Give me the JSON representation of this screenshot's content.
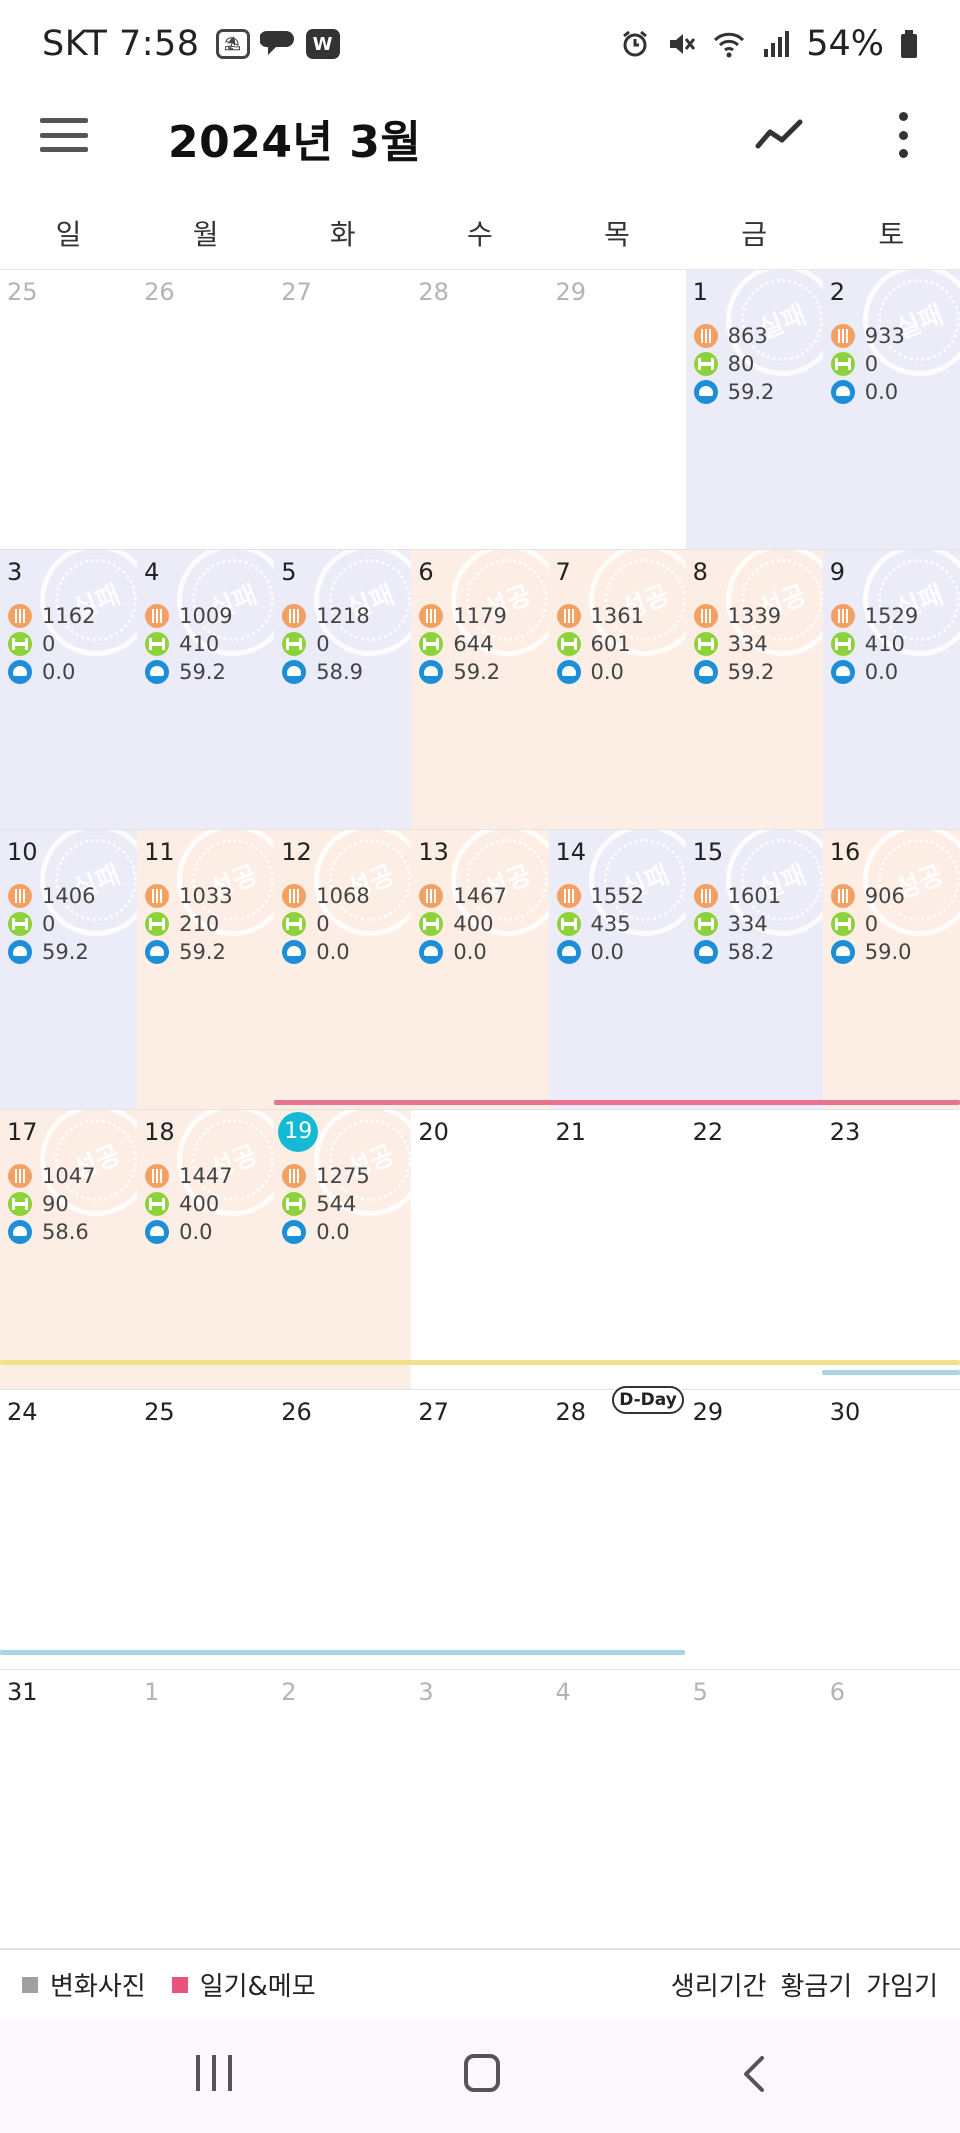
{
  "status_bar": {
    "carrier_time": "SKT 7:58",
    "icons": [
      "beach-icon",
      "chat-icon",
      "w-app-icon"
    ],
    "right_icons": [
      "alarm-icon",
      "mute-icon",
      "wifi-icon",
      "signal-icon",
      "battery-icon"
    ],
    "battery": "54%"
  },
  "header": {
    "title": "2024년 3월"
  },
  "weekdays": [
    "일",
    "월",
    "화",
    "수",
    "목",
    "금",
    "토"
  ],
  "calendar": {
    "today": "19",
    "stamp_labels": {
      "fail": "실패",
      "success": "성공"
    },
    "colors": {
      "fail_bg": "#ecebf8",
      "success_bg": "#fdeee5",
      "today": "#16b9d4"
    },
    "weeks": [
      [
        {
          "day": "25",
          "other": true
        },
        {
          "day": "26",
          "other": true
        },
        {
          "day": "27",
          "other": true
        },
        {
          "day": "28",
          "other": true
        },
        {
          "day": "29",
          "other": true
        },
        {
          "day": "1",
          "status": "fail",
          "food": "863",
          "exercise": "80",
          "weight": "59.2"
        },
        {
          "day": "2",
          "status": "fail",
          "food": "933",
          "exercise": "0",
          "weight": "0.0"
        }
      ],
      [
        {
          "day": "3",
          "status": "fail",
          "food": "1162",
          "exercise": "0",
          "weight": "0.0"
        },
        {
          "day": "4",
          "status": "fail",
          "food": "1009",
          "exercise": "410",
          "weight": "59.2"
        },
        {
          "day": "5",
          "status": "fail",
          "food": "1218",
          "exercise": "0",
          "weight": "58.9"
        },
        {
          "day": "6",
          "status": "success",
          "food": "1179",
          "exercise": "644",
          "weight": "59.2"
        },
        {
          "day": "7",
          "status": "success",
          "food": "1361",
          "exercise": "601",
          "weight": "0.0"
        },
        {
          "day": "8",
          "status": "success",
          "food": "1339",
          "exercise": "334",
          "weight": "59.2"
        },
        {
          "day": "9",
          "status": "fail",
          "food": "1529",
          "exercise": "410",
          "weight": "0.0"
        }
      ],
      [
        {
          "day": "10",
          "status": "fail",
          "food": "1406",
          "exercise": "0",
          "weight": "59.2"
        },
        {
          "day": "11",
          "status": "success",
          "food": "1033",
          "exercise": "210",
          "weight": "59.2"
        },
        {
          "day": "12",
          "status": "success",
          "food": "1068",
          "exercise": "0",
          "weight": "0.0"
        },
        {
          "day": "13",
          "status": "success",
          "food": "1467",
          "exercise": "400",
          "weight": "0.0"
        },
        {
          "day": "14",
          "status": "fail",
          "food": "1552",
          "exercise": "435",
          "weight": "0.0"
        },
        {
          "day": "15",
          "status": "fail",
          "food": "1601",
          "exercise": "334",
          "weight": "58.2"
        },
        {
          "day": "16",
          "status": "success",
          "food": "906",
          "exercise": "0",
          "weight": "59.0"
        }
      ],
      [
        {
          "day": "17",
          "status": "success",
          "food": "1047",
          "exercise": "90",
          "weight": "58.6"
        },
        {
          "day": "18",
          "status": "success",
          "food": "1447",
          "exercise": "400",
          "weight": "0.0"
        },
        {
          "day": "19",
          "status": "success",
          "food": "1275",
          "exercise": "544",
          "weight": "0.0",
          "today": true
        },
        {
          "day": "20"
        },
        {
          "day": "21"
        },
        {
          "day": "22"
        },
        {
          "day": "23"
        }
      ],
      [
        {
          "day": "24"
        },
        {
          "day": "25"
        },
        {
          "day": "26"
        },
        {
          "day": "27"
        },
        {
          "day": "28"
        },
        {
          "day": "29"
        },
        {
          "day": "30"
        }
      ],
      [
        {
          "day": "31"
        },
        {
          "day": "1",
          "other": true
        },
        {
          "day": "2",
          "other": true
        },
        {
          "day": "3",
          "other": true
        },
        {
          "day": "4",
          "other": true
        },
        {
          "day": "5",
          "other": true
        },
        {
          "day": "6",
          "other": true
        }
      ]
    ],
    "dday_label": "D-Day"
  },
  "legend": {
    "left": [
      {
        "label": "변화사진",
        "color": "#a0a0a0"
      },
      {
        "label": "일기&메모",
        "color": "#e9527d"
      }
    ],
    "right": [
      {
        "label": "생리기간",
        "color": "#ee6f8e"
      },
      {
        "label": "황금기",
        "color": "#f7e08c"
      },
      {
        "label": "가임기",
        "color": "#b9dcec"
      }
    ]
  }
}
